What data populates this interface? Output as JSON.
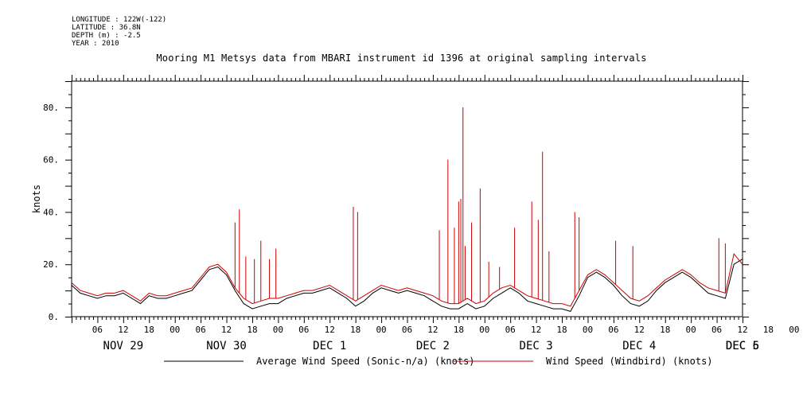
{
  "header": {
    "meta_lines": [
      "LONGITUDE : 122W(-122)",
      "LATITUDE : 36.8N",
      "DEPTH (m) : -2.5",
      "YEAR : 2010"
    ],
    "title": "Mooring M1 Metsys data from MBARI instrument id 1396 at original sampling intervals"
  },
  "chart_data": {
    "type": "line",
    "title": "Mooring M1 Metsys data from MBARI instrument id 1396 at original sampling intervals",
    "ylabel": "knots",
    "xlabel": "",
    "ylim": [
      0,
      90
    ],
    "yticks": [
      0,
      20,
      40,
      60,
      80
    ],
    "ytick_labels": [
      "0.",
      "20.",
      "40.",
      "60.",
      "80."
    ],
    "xlim_hours": [
      0,
      156
    ],
    "x_hour_labels": [
      "06",
      "12",
      "18",
      "00",
      "06",
      "12",
      "18",
      "00",
      "06",
      "12",
      "18",
      "00",
      "06",
      "12",
      "18",
      "00",
      "06",
      "12",
      "18",
      "00",
      "06",
      "12",
      "18",
      "00",
      "06",
      "12",
      "18",
      "00"
    ],
    "day_labels": [
      "NOV 29",
      "NOV 30",
      "DEC  1",
      "DEC  2",
      "DEC  3",
      "DEC  4",
      "DEC  5",
      "DEC  6"
    ],
    "legend": [
      {
        "name": "Average Wind Speed (Sonic-n/a) (knots)",
        "color": "#000000"
      },
      {
        "name": "Wind Speed (Windbird) (knots)",
        "color": "#cc0000"
      }
    ],
    "series": [
      {
        "name": "Average Wind Speed (Sonic-n/a) (knots)",
        "color": "#000000",
        "hours": [
          0,
          2,
          4,
          6,
          8,
          10,
          12,
          14,
          16,
          18,
          20,
          22,
          24,
          26,
          28,
          30,
          32,
          34,
          36,
          38,
          40,
          42,
          44,
          46,
          48,
          50,
          52,
          54,
          56,
          58,
          60,
          62,
          64,
          66,
          68,
          70,
          72,
          74,
          76,
          78,
          80,
          82,
          84,
          86,
          88,
          90,
          92,
          94,
          96,
          98,
          100,
          102,
          104,
          106,
          108,
          110,
          112,
          114,
          116,
          118,
          120,
          122,
          124,
          126,
          128,
          130,
          132,
          134,
          136,
          138,
          140,
          142,
          144,
          146,
          148,
          150,
          152,
          154,
          156
        ],
        "values": [
          12,
          9,
          8,
          7,
          8,
          8,
          9,
          7,
          5,
          8,
          7,
          7,
          8,
          9,
          10,
          14,
          18,
          19,
          16,
          10,
          5,
          3,
          4,
          5,
          5,
          7,
          8,
          9,
          9,
          10,
          11,
          9,
          7,
          4,
          6,
          9,
          11,
          10,
          9,
          10,
          9,
          8,
          6,
          4,
          3,
          3,
          5,
          3,
          4,
          7,
          9,
          11,
          9,
          6,
          5,
          4,
          3,
          3,
          2,
          8,
          15,
          17,
          15,
          12,
          8,
          5,
          4,
          6,
          10,
          13,
          15,
          17,
          15,
          12,
          9,
          8,
          7,
          20,
          22
        ]
      },
      {
        "name": "Wind Speed (Windbird) (knots)",
        "color": "#cc0000",
        "hours": [
          0,
          2,
          4,
          6,
          8,
          10,
          12,
          14,
          16,
          18,
          20,
          22,
          24,
          26,
          28,
          30,
          32,
          34,
          36,
          38,
          40,
          42,
          44,
          46,
          48,
          50,
          52,
          54,
          56,
          58,
          60,
          62,
          64,
          66,
          68,
          70,
          72,
          74,
          76,
          78,
          80,
          82,
          84,
          86,
          88,
          90,
          92,
          94,
          96,
          98,
          100,
          102,
          104,
          106,
          108,
          110,
          112,
          114,
          116,
          118,
          120,
          122,
          124,
          126,
          128,
          130,
          132,
          134,
          136,
          138,
          140,
          142,
          144,
          146,
          148,
          150,
          152,
          154,
          156
        ],
        "values": [
          13,
          10,
          9,
          8,
          9,
          9,
          10,
          8,
          6,
          9,
          8,
          8,
          9,
          10,
          11,
          15,
          19,
          20,
          17,
          11,
          7,
          5,
          6,
          7,
          7,
          8,
          9,
          10,
          10,
          11,
          12,
          10,
          8,
          6,
          8,
          10,
          12,
          11,
          10,
          11,
          10,
          9,
          8,
          6,
          5,
          5,
          7,
          5,
          6,
          9,
          11,
          12,
          10,
          8,
          7,
          6,
          5,
          5,
          4,
          10,
          16,
          18,
          16,
          13,
          10,
          7,
          6,
          8,
          11,
          14,
          16,
          18,
          16,
          13,
          11,
          10,
          9,
          24,
          20
        ]
      }
    ],
    "spikes_windbird": [
      {
        "hour": 38.0,
        "value": 36
      },
      {
        "hour": 39.0,
        "value": 41
      },
      {
        "hour": 40.5,
        "value": 23
      },
      {
        "hour": 42.5,
        "value": 22
      },
      {
        "hour": 44.0,
        "value": 29
      },
      {
        "hour": 46.0,
        "value": 22
      },
      {
        "hour": 47.5,
        "value": 26
      },
      {
        "hour": 65.5,
        "value": 42
      },
      {
        "hour": 66.5,
        "value": 40
      },
      {
        "hour": 85.5,
        "value": 33
      },
      {
        "hour": 87.5,
        "value": 60
      },
      {
        "hour": 89.0,
        "value": 34
      },
      {
        "hour": 90.0,
        "value": 44
      },
      {
        "hour": 90.5,
        "value": 45
      },
      {
        "hour": 91.0,
        "value": 80
      },
      {
        "hour": 91.5,
        "value": 27
      },
      {
        "hour": 93.0,
        "value": 36
      },
      {
        "hour": 95.0,
        "value": 49
      },
      {
        "hour": 97.0,
        "value": 21
      },
      {
        "hour": 99.5,
        "value": 19
      },
      {
        "hour": 103.0,
        "value": 34
      },
      {
        "hour": 107.0,
        "value": 44
      },
      {
        "hour": 108.5,
        "value": 37
      },
      {
        "hour": 109.5,
        "value": 63
      },
      {
        "hour": 111.0,
        "value": 25
      },
      {
        "hour": 117.0,
        "value": 40
      },
      {
        "hour": 118.0,
        "value": 38
      },
      {
        "hour": 126.5,
        "value": 29
      },
      {
        "hour": 130.5,
        "value": 27
      },
      {
        "hour": 150.5,
        "value": 30
      },
      {
        "hour": 152.0,
        "value": 28
      }
    ]
  }
}
